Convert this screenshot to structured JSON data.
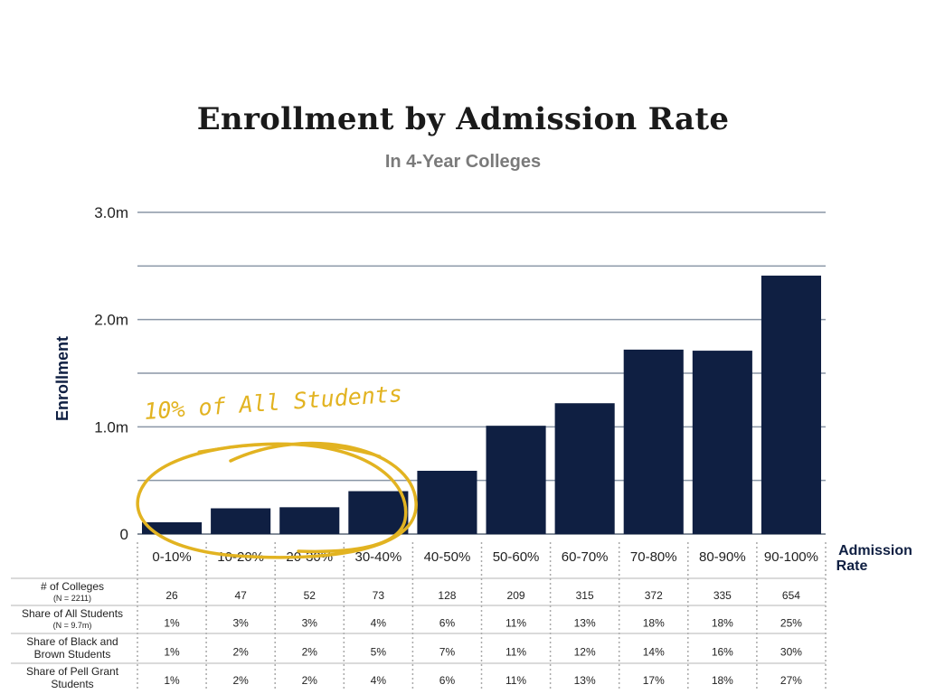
{
  "chart_data": {
    "type": "bar",
    "title": "Enrollment by Admission Rate",
    "subtitle": "In 4-Year Colleges",
    "ylabel": "Enrollment",
    "xlabel": "Admission Rate",
    "ylim": [
      0,
      3.0
    ],
    "y_ticks": [
      {
        "value": 0,
        "label": "0"
      },
      {
        "value": 1.0,
        "label": "1.0m"
      },
      {
        "value": 2.0,
        "label": "2.0m"
      },
      {
        "value": 3.0,
        "label": "3.0m"
      }
    ],
    "gridlines": [
      0.5,
      1.0,
      1.5,
      2.0,
      2.5,
      3.0
    ],
    "categories": [
      "0-10%",
      "10-20%",
      "20-30%",
      "30-40%",
      "40-50%",
      "50-60%",
      "60-70%",
      "70-80%",
      "80-90%",
      "90-100%"
    ],
    "values": [
      0.11,
      0.24,
      0.25,
      0.4,
      0.59,
      1.01,
      1.22,
      1.72,
      1.71,
      2.41
    ],
    "bar_color": "#0f1f42",
    "grid": true,
    "annotation": {
      "text": "10% of All Students",
      "color": "#e2b321"
    },
    "table": [
      {
        "label": "# of Colleges",
        "note": "(N = 2211)",
        "values": [
          "26",
          "47",
          "52",
          "73",
          "128",
          "209",
          "315",
          "372",
          "335",
          "654"
        ]
      },
      {
        "label": "Share of All Students",
        "note": "(N = 9.7m)",
        "values": [
          "1%",
          "3%",
          "3%",
          "4%",
          "6%",
          "11%",
          "13%",
          "18%",
          "18%",
          "25%"
        ]
      },
      {
        "label": "Share of Black and Brown Students",
        "label_lines": [
          "Share of Black and",
          "Brown Students"
        ],
        "values": [
          "1%",
          "2%",
          "2%",
          "5%",
          "7%",
          "11%",
          "12%",
          "14%",
          "16%",
          "30%"
        ]
      },
      {
        "label": "Share of Pell Grant Students",
        "label_lines": [
          "Share of Pell Grant",
          "Students"
        ],
        "values": [
          "1%",
          "2%",
          "2%",
          "4%",
          "6%",
          "11%",
          "13%",
          "17%",
          "18%",
          "27%"
        ]
      }
    ]
  }
}
